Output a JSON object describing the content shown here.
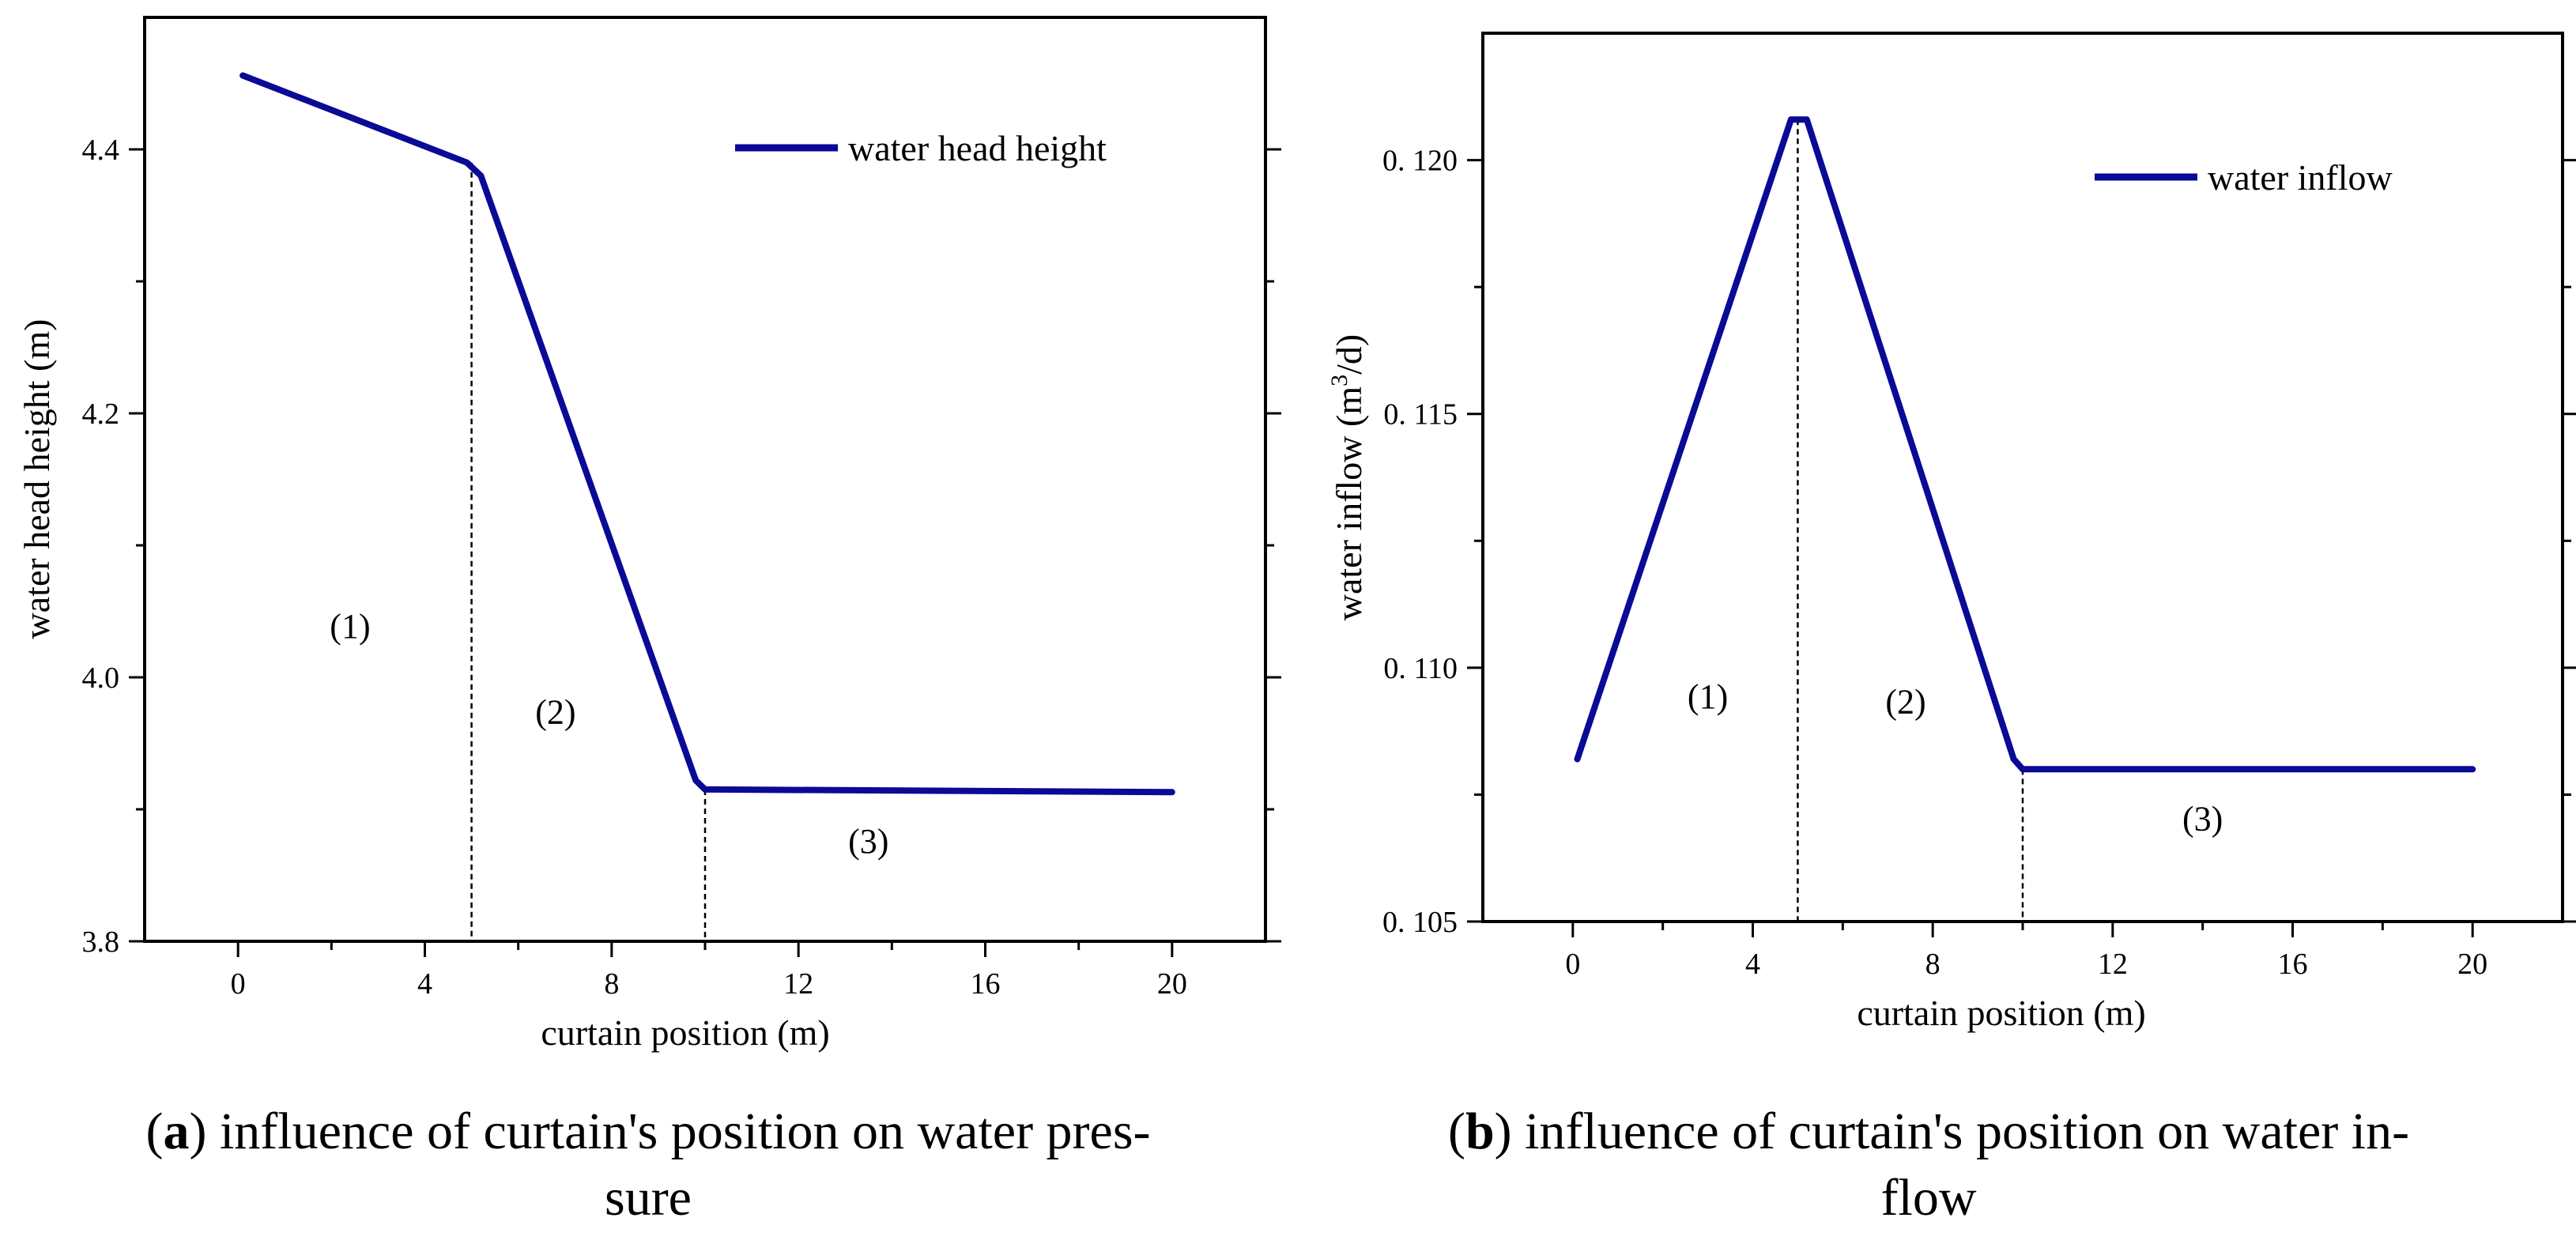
{
  "chart_data": [
    {
      "type": "line",
      "panel": "a",
      "caption_letter": "a",
      "caption_text": "influence of curtain's position on water pressure",
      "caption_line1": "influence of curtain's position on water pres-",
      "caption_line2": "sure",
      "xlabel": "curtain position (m)",
      "ylabel": "water head height (m)",
      "xlim": [
        -2,
        22
      ],
      "ylim": [
        3.8,
        4.5
      ],
      "xticks": [
        0,
        4,
        8,
        12,
        16,
        20
      ],
      "xtick_labels": [
        "0",
        "4",
        "8",
        "12",
        "16",
        "20"
      ],
      "yticks": [
        3.8,
        4.0,
        4.2,
        4.4
      ],
      "ytick_labels": [
        "3.8",
        "4.0",
        "4.2",
        "4.4"
      ],
      "series": [
        {
          "name": "water head height",
          "color": "#0a0a96",
          "x": [
            0.1,
            4.9,
            5.2,
            9.8,
            10.0,
            10.2,
            20.0
          ],
          "y": [
            4.456,
            4.39,
            4.38,
            3.922,
            3.915,
            3.915,
            3.913
          ]
        }
      ],
      "legend": {
        "location": "top-right",
        "entries": [
          "water head height"
        ]
      },
      "annotations": [
        {
          "text": "(1)",
          "x": 2.4,
          "y": 4.03
        },
        {
          "text": "(2)",
          "x": 6.8,
          "y": 3.965
        },
        {
          "text": "(3)",
          "x": 13.5,
          "y": 3.867
        }
      ],
      "guide_lines": [
        {
          "x": 5.0,
          "y_top": 4.39
        },
        {
          "x": 10.0,
          "y_top": 3.915
        }
      ]
    },
    {
      "type": "line",
      "panel": "b",
      "caption_letter": "b",
      "caption_text": "influence of curtain's position on water inflow",
      "caption_line1": "influence of curtain's position on water in-",
      "caption_line2": "flow",
      "xlabel": "curtain position (m)",
      "ylabel": "water inflow (m³/d)",
      "ylabel_parts": [
        "water inflow (m",
        "3",
        "/d)"
      ],
      "xlim": [
        -2,
        22
      ],
      "ylim": [
        0.105,
        0.1225
      ],
      "xticks": [
        0,
        4,
        8,
        12,
        16,
        20
      ],
      "xtick_labels": [
        "0",
        "4",
        "8",
        "12",
        "16",
        "20"
      ],
      "yticks": [
        0.105,
        0.11,
        0.115,
        0.12
      ],
      "ytick_labels": [
        "0. 105",
        "0. 110",
        "0. 115",
        "0. 120"
      ],
      "series": [
        {
          "name": "water inflow",
          "color": "#0a0a96",
          "x": [
            0.1,
            4.85,
            5.2,
            9.8,
            10.0,
            10.2,
            20.0
          ],
          "y": [
            0.1082,
            0.1208,
            0.1208,
            0.1082,
            0.108,
            0.108,
            0.108
          ]
        }
      ],
      "legend": {
        "location": "top-right",
        "entries": [
          "water inflow"
        ]
      },
      "annotations": [
        {
          "text": "(1)",
          "x": 3.0,
          "y": 0.1092
        },
        {
          "text": "(2)",
          "x": 7.4,
          "y": 0.1091
        },
        {
          "text": "(3)",
          "x": 14.0,
          "y": 0.1068
        }
      ],
      "guide_lines": [
        {
          "x": 5.0,
          "y_top": 0.1208
        },
        {
          "x": 10.0,
          "y_top": 0.108
        }
      ]
    }
  ]
}
